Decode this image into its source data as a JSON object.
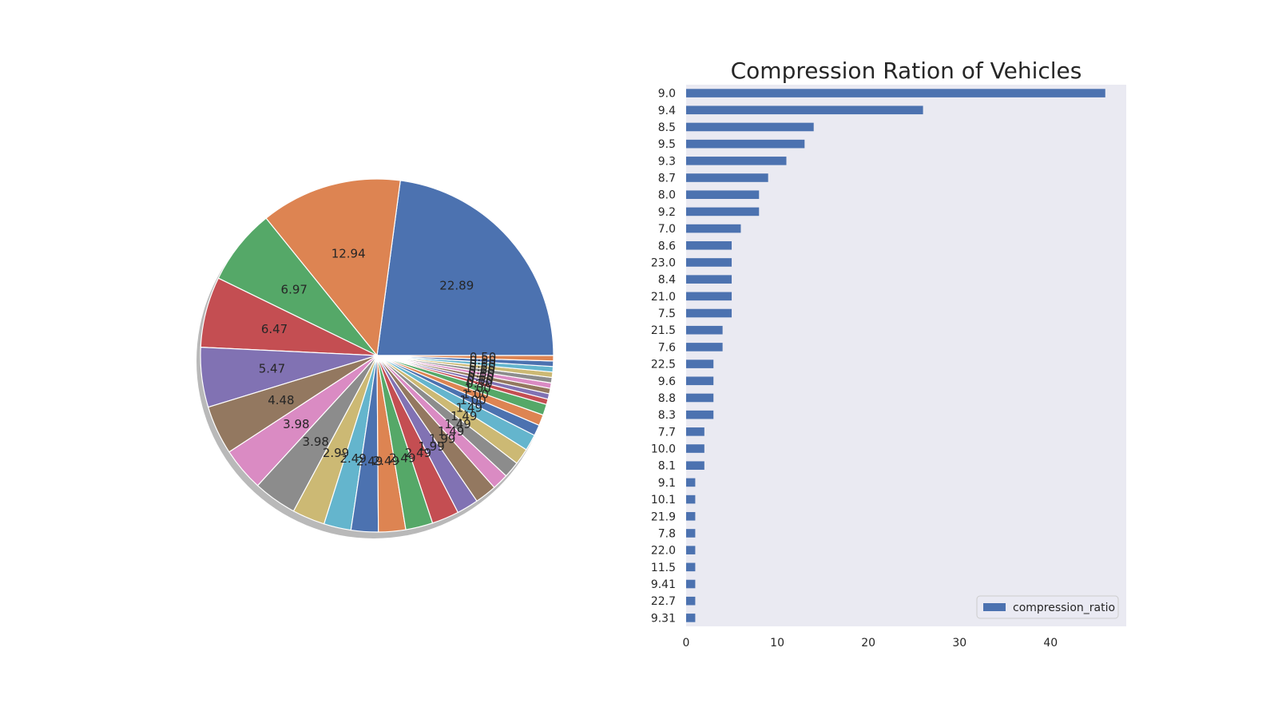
{
  "chart_data": [
    {
      "type": "pie",
      "shadow": true,
      "start_angle_deg": 0,
      "direction": "counterclockwise",
      "label_format": "%.2f",
      "colors": [
        "#4c72b0",
        "#dd8452",
        "#55a868",
        "#c44e52",
        "#8172b3",
        "#937860",
        "#da8bc3",
        "#8c8c8c",
        "#ccb974",
        "#64b5cd"
      ],
      "values": [
        46,
        26,
        14,
        13,
        11,
        9,
        8,
        8,
        6,
        5,
        5,
        5,
        5,
        5,
        4,
        4,
        3,
        3,
        3,
        3,
        2,
        2,
        2,
        1,
        1,
        1,
        1,
        1,
        1,
        1,
        1,
        1
      ]
    },
    {
      "type": "bar",
      "orientation": "horizontal",
      "title": "Compression Ration of Vehicles",
      "categories": [
        "9.0",
        "9.4",
        "8.5",
        "9.5",
        "9.3",
        "8.7",
        "8.0",
        "9.2",
        "7.0",
        "8.6",
        "23.0",
        "8.4",
        "21.0",
        "7.5",
        "21.5",
        "7.6",
        "22.5",
        "9.6",
        "8.8",
        "8.3",
        "7.7",
        "10.0",
        "8.1",
        "9.1",
        "10.1",
        "21.9",
        "7.8",
        "22.0",
        "11.5",
        "9.41",
        "22.7",
        "9.31"
      ],
      "series": [
        {
          "name": "compression_ratio",
          "color": "#4c72b0",
          "values": [
            46,
            26,
            14,
            13,
            11,
            9,
            8,
            8,
            6,
            5,
            5,
            5,
            5,
            5,
            4,
            4,
            3,
            3,
            3,
            3,
            2,
            2,
            2,
            1,
            1,
            1,
            1,
            1,
            1,
            1,
            1,
            1
          ]
        }
      ],
      "xticks": [
        0,
        10,
        20,
        30,
        40
      ],
      "xlim": [
        0,
        48.3
      ],
      "grid": false,
      "background": "#eaeaf2",
      "legend_position": "lower-right"
    }
  ]
}
